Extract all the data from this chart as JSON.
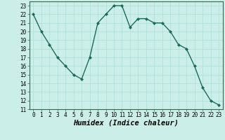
{
  "x": [
    0,
    1,
    2,
    3,
    4,
    5,
    6,
    7,
    8,
    9,
    10,
    11,
    12,
    13,
    14,
    15,
    16,
    17,
    18,
    19,
    20,
    21,
    22,
    23
  ],
  "y": [
    22,
    20,
    18.5,
    17,
    16,
    15,
    14.5,
    17,
    21,
    22,
    23,
    23,
    20.5,
    21.5,
    21.5,
    21,
    21,
    20,
    18.5,
    18,
    16,
    13.5,
    12,
    11.5
  ],
  "line_color": "#1a6b5a",
  "marker": "D",
  "marker_size": 2.0,
  "bg_color": "#cceee8",
  "grid_color_major": "#aaddd8",
  "grid_color_minor": "#cceeea",
  "xlabel": "Humidex (Indice chaleur)",
  "xlabel_fontsize": 7.5,
  "xlim": [
    -0.5,
    23.5
  ],
  "ylim": [
    11,
    23.5
  ],
  "yticks": [
    11,
    12,
    13,
    14,
    15,
    16,
    17,
    18,
    19,
    20,
    21,
    22,
    23
  ],
  "xticks": [
    0,
    1,
    2,
    3,
    4,
    5,
    6,
    7,
    8,
    9,
    10,
    11,
    12,
    13,
    14,
    15,
    16,
    17,
    18,
    19,
    20,
    21,
    22,
    23
  ],
  "tick_fontsize": 5.5,
  "line_width": 1.0
}
